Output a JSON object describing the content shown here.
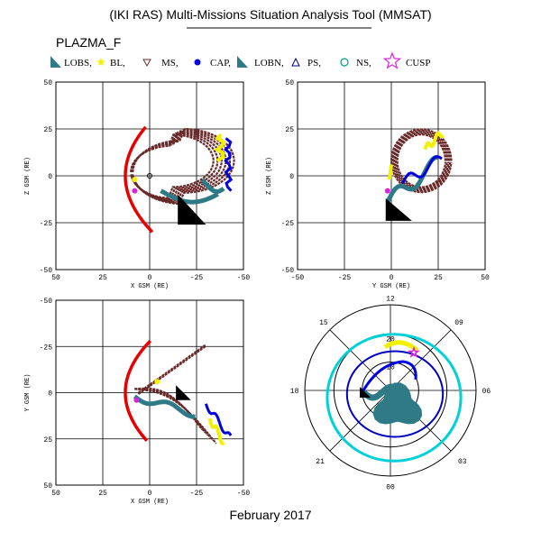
{
  "header": {
    "title": "(IKI RAS) Multi-Missions Situation Analysis Tool (MMSAT)",
    "mission": "PLAZMA_F",
    "footer": "February 2017"
  },
  "legend": [
    {
      "label": "LOBS,",
      "marker": "triangle-filled",
      "color": "#2e7a86"
    },
    {
      "label": "BL,",
      "marker": "star-filled",
      "color": "#f2f200"
    },
    {
      "label": "MS,",
      "marker": "triangle-down-open",
      "color": "#6a2a2a"
    },
    {
      "label": "CAP,",
      "marker": "circle-filled",
      "color": "#0000e0"
    },
    {
      "label": "LOBN,",
      "marker": "triangle-filled",
      "color": "#2e7a86"
    },
    {
      "label": "PS,",
      "marker": "triangle-open",
      "color": "#00007a"
    },
    {
      "label": "NS,",
      "marker": "circle-open",
      "color": "#00a080"
    },
    {
      "label": "CUSP",
      "marker": "star-open",
      "color": "#e020e0"
    }
  ],
  "colors": {
    "orbit_ms": "#6a2a2a",
    "lobe": "#2e7a86",
    "cap": "#0000e0",
    "bl": "#f2f200",
    "bowshock": "#e80000",
    "cusp": "#e020e0",
    "polar_circle": "#00d0d8",
    "polar_oval": "#0000c0"
  },
  "chart_data": [
    {
      "type": "scatter",
      "panel": "top-left",
      "xlabel": "X GSM (RE)",
      "ylabel": "Z GSM (RE)",
      "xlim": [
        50,
        -50
      ],
      "ylim": [
        -50,
        50
      ],
      "xticks": [
        "50",
        "25",
        "0",
        "-25",
        "-50"
      ],
      "yticks": [
        "50",
        "25",
        "0",
        "-25",
        "-50"
      ]
    },
    {
      "type": "scatter",
      "panel": "top-right",
      "xlabel": "Y GSM (RE)",
      "ylabel": "Z GSM (RE)",
      "xlim": [
        -50,
        50
      ],
      "ylim": [
        -50,
        50
      ],
      "xticks": [
        "-50",
        "-25",
        "0",
        "25",
        "50"
      ],
      "yticks": [
        "50",
        "25",
        "0",
        "-25",
        "-50"
      ]
    },
    {
      "type": "scatter",
      "panel": "bottom-left",
      "xlabel": "X GSM (RE)",
      "ylabel": "Y GSM (RE)",
      "xlim": [
        50,
        -50
      ],
      "ylim": [
        50,
        -50
      ],
      "xticks": [
        "50",
        "25",
        "0",
        "-25",
        "-50"
      ],
      "yticks": [
        "-50",
        "-25",
        "0",
        "25",
        "50"
      ]
    },
    {
      "type": "polar",
      "panel": "bottom-right",
      "mlt_labels": [
        "12",
        "15",
        "09",
        "18",
        "06",
        "21",
        "03",
        "00"
      ],
      "ring_labels": [
        "20",
        "10"
      ]
    }
  ]
}
